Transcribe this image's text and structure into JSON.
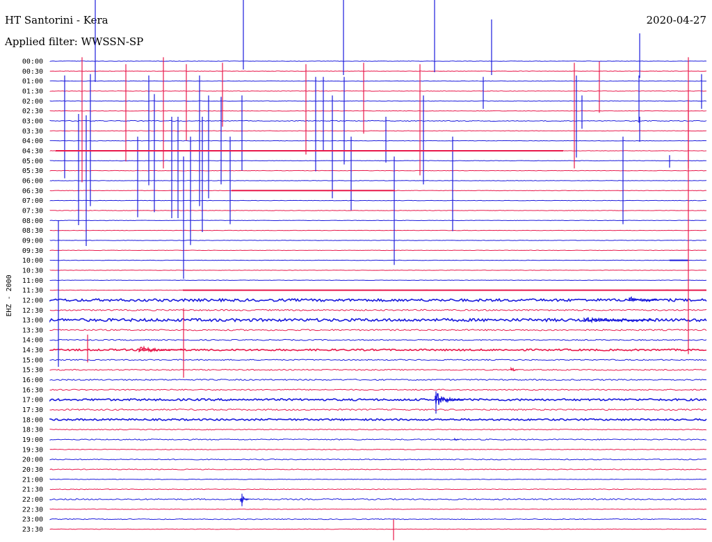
{
  "header": {
    "station": "HT Santorini - Kera",
    "filter": "Applied filter: WWSSN-SP",
    "date": "2020-04-27"
  },
  "channel_label": "EHZ - 2000",
  "colors": {
    "blue": "#1a1adc",
    "red": "#e8184a",
    "text": "#000000"
  },
  "traces": [
    {
      "label": "00:00",
      "color": "blue"
    },
    {
      "label": "00:30",
      "color": "red"
    },
    {
      "label": "01:00",
      "color": "blue"
    },
    {
      "label": "01:30",
      "color": "red"
    },
    {
      "label": "02:00",
      "color": "blue"
    },
    {
      "label": "02:30",
      "color": "red"
    },
    {
      "label": "03:00",
      "color": "blue"
    },
    {
      "label": "03:30",
      "color": "red"
    },
    {
      "label": "04:00",
      "color": "blue"
    },
    {
      "label": "04:30",
      "color": "red"
    },
    {
      "label": "05:00",
      "color": "blue"
    },
    {
      "label": "05:30",
      "color": "red"
    },
    {
      "label": "06:00",
      "color": "blue"
    },
    {
      "label": "06:30",
      "color": "red"
    },
    {
      "label": "07:00",
      "color": "blue"
    },
    {
      "label": "07:30",
      "color": "red"
    },
    {
      "label": "08:00",
      "color": "blue"
    },
    {
      "label": "08:30",
      "color": "red"
    },
    {
      "label": "09:00",
      "color": "blue"
    },
    {
      "label": "09:30",
      "color": "red"
    },
    {
      "label": "10:00",
      "color": "blue"
    },
    {
      "label": "10:30",
      "color": "red"
    },
    {
      "label": "11:00",
      "color": "blue"
    },
    {
      "label": "11:30",
      "color": "red"
    },
    {
      "label": "12:00",
      "color": "blue"
    },
    {
      "label": "12:30",
      "color": "red"
    },
    {
      "label": "13:00",
      "color": "blue"
    },
    {
      "label": "13:30",
      "color": "red"
    },
    {
      "label": "14:00",
      "color": "blue"
    },
    {
      "label": "14:30",
      "color": "red"
    },
    {
      "label": "15:00",
      "color": "blue"
    },
    {
      "label": "15:30",
      "color": "red"
    },
    {
      "label": "16:00",
      "color": "blue"
    },
    {
      "label": "16:30",
      "color": "red"
    },
    {
      "label": "17:00",
      "color": "blue"
    },
    {
      "label": "17:30",
      "color": "red"
    },
    {
      "label": "18:00",
      "color": "blue"
    },
    {
      "label": "18:30",
      "color": "red"
    },
    {
      "label": "19:00",
      "color": "blue"
    },
    {
      "label": "19:30",
      "color": "red"
    },
    {
      "label": "20:00",
      "color": "blue"
    },
    {
      "label": "20:30",
      "color": "red"
    },
    {
      "label": "21:00",
      "color": "blue"
    },
    {
      "label": "21:30",
      "color": "red"
    },
    {
      "label": "22:00",
      "color": "blue"
    },
    {
      "label": "22:30",
      "color": "red"
    },
    {
      "label": "23:00",
      "color": "blue"
    },
    {
      "label": "23:30",
      "color": "red"
    }
  ]
}
